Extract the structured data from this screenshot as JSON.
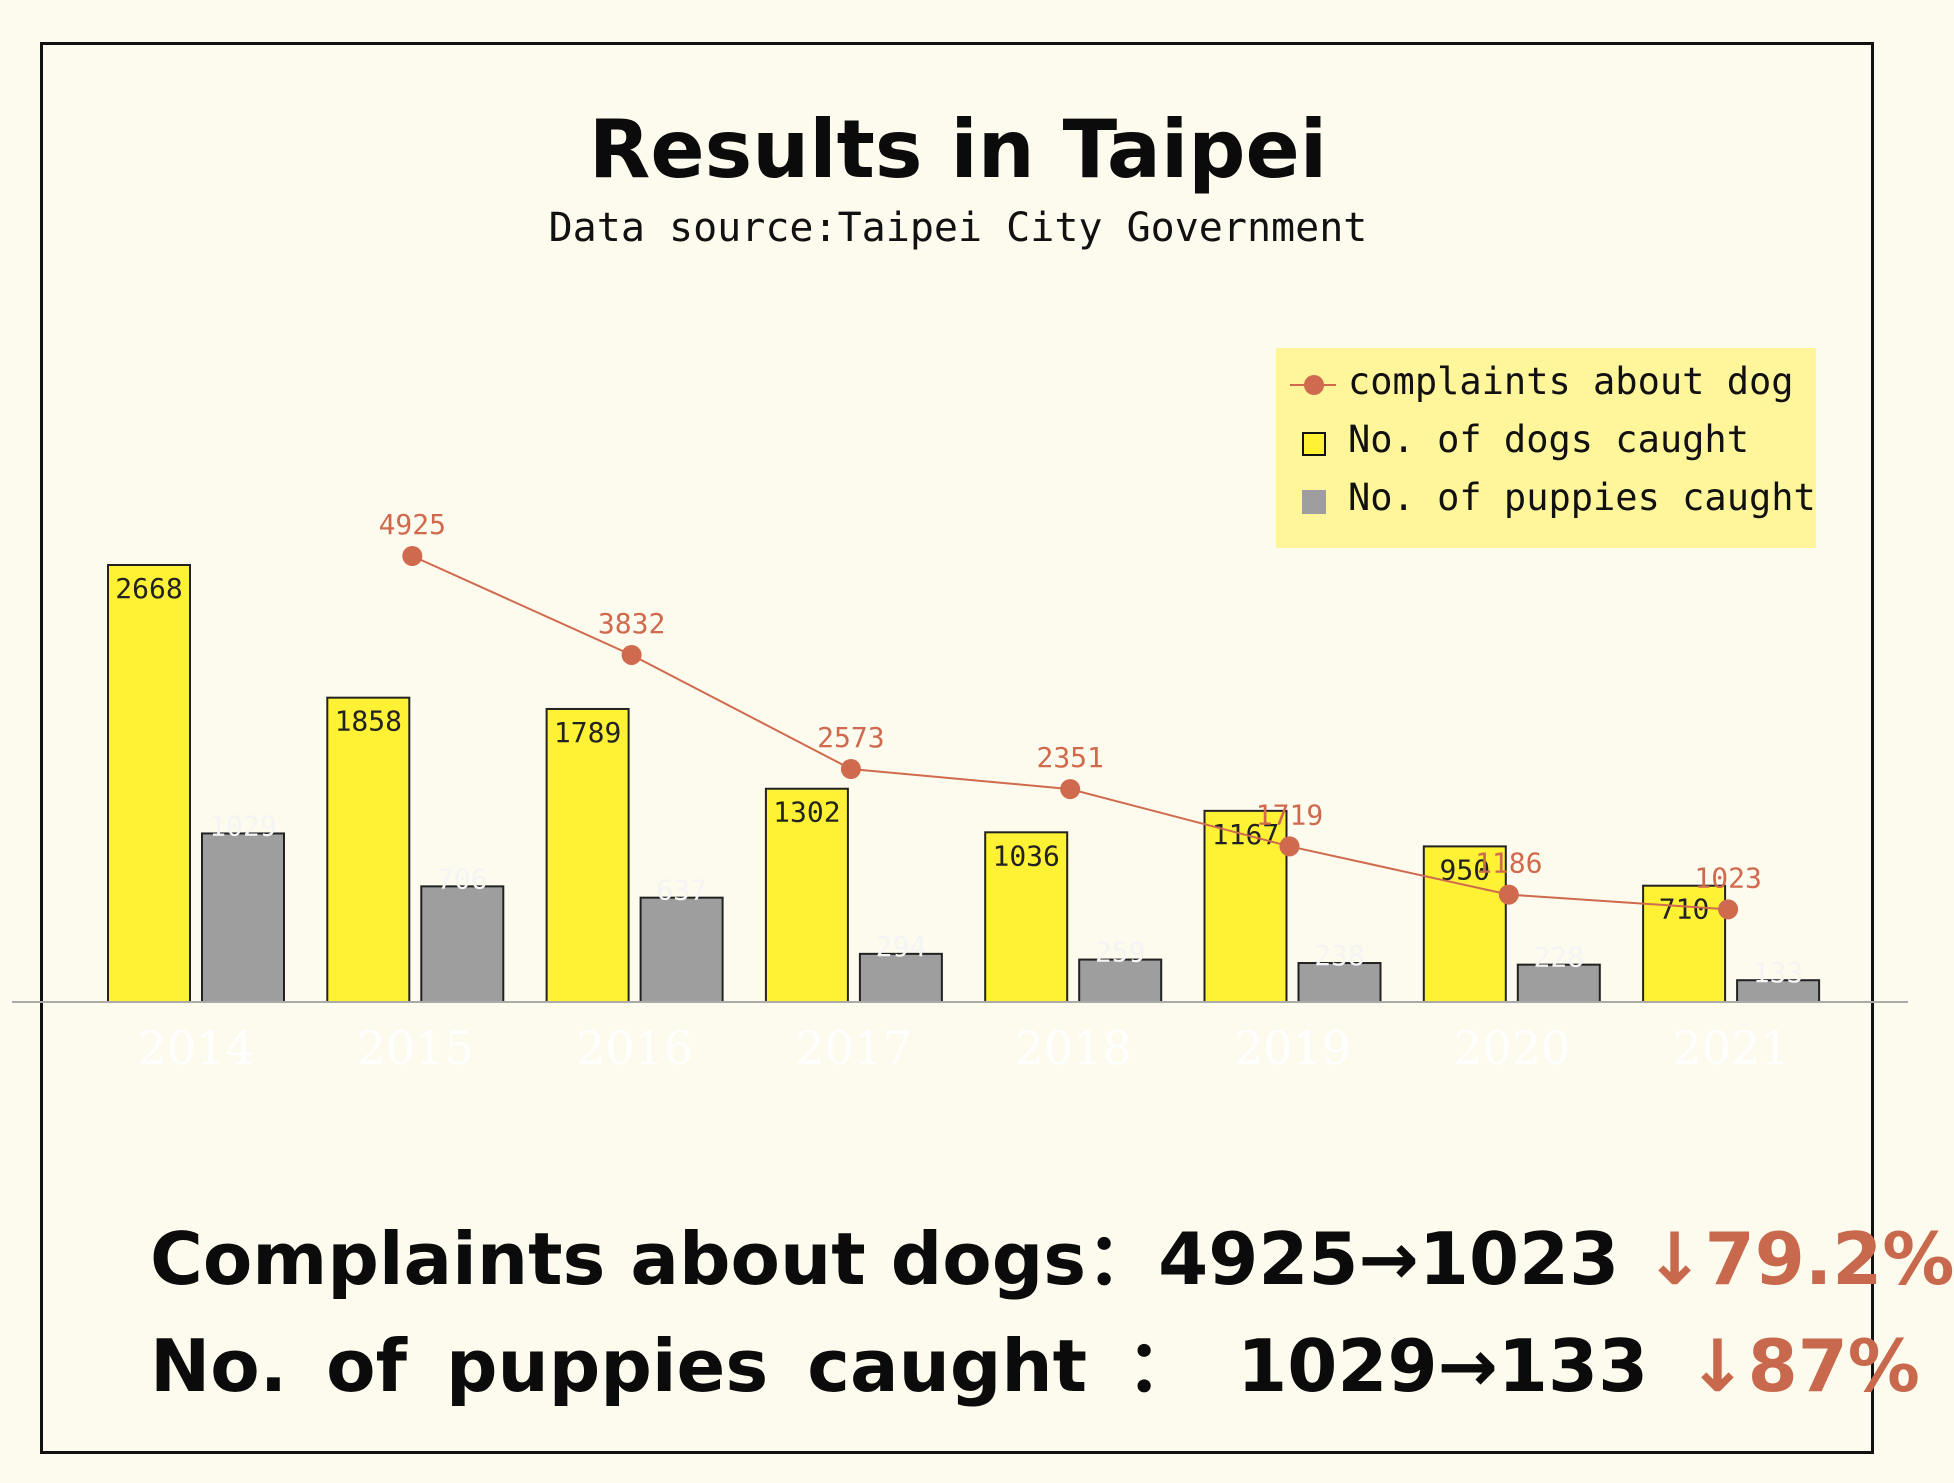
{
  "title": "Results in Taipei",
  "subtitle": "Data source:Taipei City Government",
  "colors": {
    "dogs": "#fff234",
    "puppies": "#9e9e9e",
    "complaints": "#d06a4e",
    "legend_bg": "#fff59a",
    "background": "#fdfbee"
  },
  "legend": {
    "complaints": "complaints about dog",
    "dogs": "No. of dogs caught",
    "puppies": "No. of puppies caught"
  },
  "chart_data": {
    "type": "bar",
    "categories": [
      "2014",
      "2015",
      "2016",
      "2017",
      "2018",
      "2019",
      "2020",
      "2021"
    ],
    "series": [
      {
        "name": "No. of dogs caught",
        "kind": "bar",
        "values": [
          2668,
          1858,
          1789,
          1302,
          1036,
          1167,
          950,
          710
        ]
      },
      {
        "name": "No. of puppies caught",
        "kind": "bar",
        "values": [
          1029,
          706,
          637,
          294,
          259,
          238,
          228,
          133
        ]
      },
      {
        "name": "complaints about dog",
        "kind": "line",
        "values": [
          null,
          4925,
          3832,
          2573,
          2351,
          1719,
          1186,
          1023
        ]
      }
    ],
    "legend_position": "top-right",
    "grid": false
  },
  "summary": {
    "complaints_label": "Complaints about dogs：4925→1023",
    "complaints_pct": "↓79.2%",
    "puppies_label": "No. of puppies caught ： 1029→133",
    "puppies_pct": "↓87%"
  }
}
